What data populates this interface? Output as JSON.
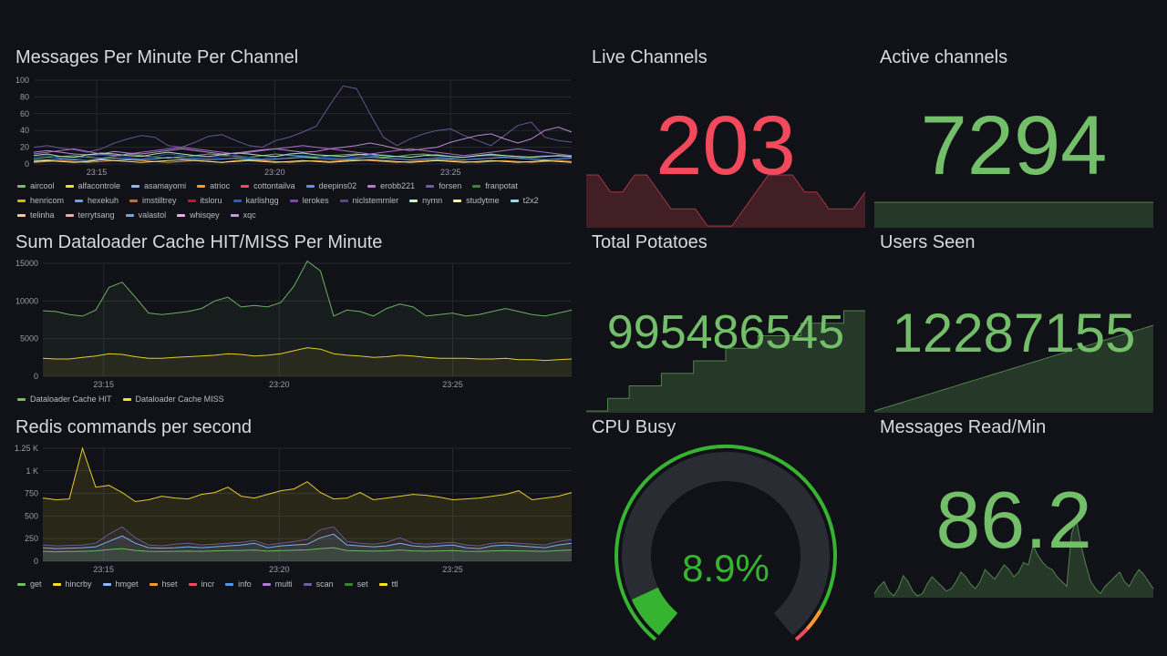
{
  "panels": {
    "messages": {
      "title": "Messages Per Minute Per Channel",
      "legend": [
        {
          "name": "aircool",
          "color": "#73bf69"
        },
        {
          "name": "alfacontrole",
          "color": "#fade2a"
        },
        {
          "name": "asamayomi",
          "color": "#8ab8ff"
        },
        {
          "name": "atrioc",
          "color": "#ff9830"
        },
        {
          "name": "cottontailva",
          "color": "#f2495c"
        },
        {
          "name": "deepins02",
          "color": "#5794f2"
        },
        {
          "name": "erobb221",
          "color": "#b877d9"
        },
        {
          "name": "forsen",
          "color": "#705da0"
        },
        {
          "name": "franpotat",
          "color": "#37872d"
        },
        {
          "name": "henricom",
          "color": "#e0b400"
        },
        {
          "name": "hexekuh",
          "color": "#6e9fff"
        },
        {
          "name": "imstilltrey",
          "color": "#c4702b"
        },
        {
          "name": "itsloru",
          "color": "#c4162a"
        },
        {
          "name": "karlishgg",
          "color": "#1f60c4"
        },
        {
          "name": "lerokes",
          "color": "#8f3bb8"
        },
        {
          "name": "niclstemmler",
          "color": "#56497d"
        },
        {
          "name": "nymn",
          "color": "#c8f2c2"
        },
        {
          "name": "studytme",
          "color": "#fff899"
        },
        {
          "name": "t2x2",
          "color": "#8ae0ff"
        },
        {
          "name": "telinha",
          "color": "#ffcb7d"
        },
        {
          "name": "terrytsang",
          "color": "#ffa6b0"
        },
        {
          "name": "valastol",
          "color": "#6fa8dc"
        },
        {
          "name": "whisqey",
          "color": "#f8a5e6"
        },
        {
          "name": "xqc",
          "color": "#ca95e5"
        }
      ]
    },
    "dataloader": {
      "title": "Sum Dataloader Cache HIT/MISS Per Minute",
      "legend": [
        {
          "name": "Dataloader Cache HIT",
          "color": "#73bf69"
        },
        {
          "name": "Dataloader Cache MISS",
          "color": "#fade2a"
        }
      ]
    },
    "redis": {
      "title": "Redis commands per second",
      "legend": [
        {
          "name": "get",
          "color": "#73bf69"
        },
        {
          "name": "hincrby",
          "color": "#fade2a"
        },
        {
          "name": "hmget",
          "color": "#8ab8ff"
        },
        {
          "name": "hset",
          "color": "#ff9830"
        },
        {
          "name": "incr",
          "color": "#f2495c"
        },
        {
          "name": "info",
          "color": "#5794f2"
        },
        {
          "name": "multi",
          "color": "#b877d9"
        },
        {
          "name": "scan",
          "color": "#705da0"
        },
        {
          "name": "set",
          "color": "#37872d"
        },
        {
          "name": "ttl",
          "color": "#fade2a"
        }
      ]
    },
    "live_channels": {
      "title": "Live Channels",
      "value": "203",
      "color": "#f2495c"
    },
    "active_channels": {
      "title": "Active channels",
      "value": "7294",
      "color": "#73bf69"
    },
    "total_potatoes": {
      "title": "Total Potatoes",
      "value": "995486545",
      "color": "#73bf69"
    },
    "users_seen": {
      "title": "Users Seen",
      "value": "12287155",
      "color": "#73bf69"
    },
    "cpu_busy": {
      "title": "CPU Busy",
      "value": "8.9%",
      "percent": 8.9,
      "color": "#37b332"
    },
    "messages_read": {
      "title": "Messages Read/Min",
      "value": "86.2",
      "color": "#73bf69"
    }
  },
  "chart_data": [
    {
      "type": "line",
      "title": "Messages Per Minute Per Channel",
      "x_ticks": [
        "23:15",
        "23:20",
        "23:25"
      ],
      "ylim": [
        0,
        100
      ],
      "y_ticks": [
        0,
        20,
        40,
        60,
        80,
        100
      ],
      "series": [
        {
          "name": "forsen",
          "color": "#705da0",
          "values": [
            20,
            22,
            19,
            17,
            14,
            18,
            25,
            30,
            34,
            32,
            22,
            20,
            26,
            33,
            35,
            28,
            22,
            20,
            28,
            32,
            38,
            45,
            70,
            93,
            90,
            60,
            32,
            22,
            30,
            36,
            40,
            42,
            34,
            28,
            22,
            34,
            46,
            50,
            32,
            28,
            26
          ]
        },
        {
          "name": "xqc",
          "color": "#ca95e5",
          "values": [
            14,
            16,
            14,
            12,
            11,
            12,
            15,
            13,
            12,
            14,
            16,
            18,
            16,
            14,
            12,
            13,
            15,
            17,
            18,
            16,
            14,
            15,
            18,
            20,
            22,
            25,
            22,
            18,
            16,
            18,
            20,
            26,
            30,
            34,
            36,
            30,
            25,
            30,
            40,
            44,
            38
          ]
        },
        {
          "name": "aircool",
          "color": "#73bf69",
          "values": [
            6,
            8,
            9,
            10,
            8,
            7,
            9,
            12,
            10,
            8,
            7,
            9,
            10,
            12,
            11,
            9,
            8,
            10,
            12,
            10,
            9,
            8,
            10,
            11,
            12,
            10,
            8,
            9,
            11,
            12,
            10,
            9,
            8,
            10,
            12,
            10,
            9,
            8,
            9,
            10,
            9
          ]
        },
        {
          "name": "karlishgg",
          "color": "#1f60c4",
          "values": [
            8,
            10,
            7,
            6,
            9,
            11,
            10,
            8,
            6,
            9,
            12,
            10,
            8,
            7,
            9,
            10,
            8,
            6,
            9,
            11,
            10,
            9,
            8,
            7,
            9,
            10,
            11,
            9,
            8,
            10,
            9,
            7,
            8,
            9,
            10,
            8,
            7,
            9,
            10,
            9,
            8
          ]
        },
        {
          "name": "asamayomi",
          "color": "#8ab8ff",
          "values": [
            4,
            5,
            6,
            5,
            4,
            6,
            7,
            6,
            5,
            6,
            8,
            7,
            6,
            5,
            6,
            7,
            6,
            5,
            6,
            7,
            8,
            7,
            6,
            5,
            7,
            8,
            7,
            6,
            5,
            6,
            7,
            6,
            5,
            6,
            7,
            8,
            7,
            6,
            5,
            6,
            7
          ]
        },
        {
          "name": "atrioc",
          "color": "#ff9830",
          "values": [
            2,
            3,
            4,
            3,
            2,
            3,
            4,
            5,
            4,
            3,
            2,
            3,
            4,
            3,
            2,
            4,
            5,
            4,
            3,
            2,
            3,
            4,
            3,
            4,
            5,
            4,
            3,
            2,
            3,
            4,
            5,
            4,
            3,
            2,
            3,
            4,
            3,
            2,
            3,
            4,
            3
          ]
        },
        {
          "name": "nymn",
          "color": "#c8f2c2",
          "values": [
            10,
            12,
            9,
            8,
            11,
            13,
            12,
            10,
            9,
            12,
            14,
            12,
            10,
            9,
            11,
            13,
            12,
            10,
            9,
            12,
            13,
            11,
            10,
            9,
            11,
            12,
            10,
            9,
            8,
            10,
            11,
            9,
            8,
            10,
            11,
            10,
            9,
            8,
            9,
            10,
            9
          ]
        },
        {
          "name": "studytme",
          "color": "#fff899",
          "values": [
            3,
            4,
            3,
            2,
            3,
            5,
            4,
            3,
            2,
            3,
            4,
            5,
            4,
            3,
            2,
            3,
            4,
            3,
            2,
            3,
            4,
            3,
            2,
            3,
            4,
            5,
            4,
            3,
            2,
            3,
            4,
            3,
            2,
            3,
            4,
            3,
            2,
            3,
            4,
            3,
            2
          ]
        },
        {
          "name": "erobb221",
          "color": "#b877d9",
          "values": [
            12,
            14,
            16,
            18,
            15,
            12,
            10,
            12,
            14,
            16,
            18,
            20,
            18,
            16,
            14,
            12,
            14,
            16,
            18,
            20,
            22,
            20,
            18,
            16,
            14,
            12,
            14,
            16,
            18,
            16,
            14,
            12,
            10,
            12,
            14,
            16,
            18,
            16,
            14,
            12,
            10
          ]
        }
      ]
    },
    {
      "type": "area",
      "title": "Sum Dataloader Cache HIT/MISS Per Minute",
      "x_ticks": [
        "23:15",
        "23:20",
        "23:25"
      ],
      "ylim": [
        0,
        15000
      ],
      "y_ticks": [
        0,
        5000,
        10000,
        15000
      ],
      "series": [
        {
          "name": "Dataloader Cache HIT",
          "color": "#73bf69",
          "values": [
            8700,
            8600,
            8200,
            8000,
            8800,
            11800,
            12500,
            10500,
            8400,
            8200,
            8400,
            8600,
            9000,
            10000,
            10500,
            9200,
            9400,
            9200,
            9800,
            12000,
            15300,
            14000,
            8000,
            8800,
            8600,
            8000,
            9000,
            9600,
            9200,
            8000,
            8200,
            8400,
            8000,
            8200,
            8600,
            9000,
            8600,
            8200,
            8000,
            8400,
            8800
          ]
        },
        {
          "name": "Dataloader Cache MISS",
          "color": "#fade2a",
          "values": [
            2400,
            2300,
            2300,
            2500,
            2700,
            3000,
            2900,
            2600,
            2400,
            2400,
            2500,
            2600,
            2700,
            2800,
            3000,
            2900,
            2700,
            2800,
            3000,
            3400,
            3800,
            3600,
            3000,
            2800,
            2700,
            2500,
            2600,
            2800,
            2700,
            2500,
            2400,
            2400,
            2400,
            2300,
            2300,
            2400,
            2200,
            2200,
            2100,
            2200,
            2300
          ]
        }
      ]
    },
    {
      "type": "area",
      "title": "Redis commands per second",
      "x_ticks": [
        "23:15",
        "23:20",
        "23:25"
      ],
      "ylim": [
        0,
        1250
      ],
      "y_ticks": [
        {
          "v": 0,
          "t": "0"
        },
        {
          "v": 250,
          "t": "250"
        },
        {
          "v": 500,
          "t": "500"
        },
        {
          "v": 750,
          "t": "750"
        },
        {
          "v": 1000,
          "t": "1 K"
        },
        {
          "v": 1250,
          "t": "1.25 K"
        }
      ],
      "series": [
        {
          "name": "hincrby",
          "color": "#fade2a",
          "values": [
            700,
            680,
            690,
            1250,
            820,
            840,
            760,
            660,
            680,
            720,
            700,
            690,
            740,
            760,
            820,
            720,
            700,
            740,
            780,
            800,
            880,
            760,
            690,
            700,
            760,
            680,
            700,
            720,
            740,
            730,
            710,
            680,
            690,
            700,
            720,
            740,
            780,
            680,
            700,
            720,
            760
          ]
        },
        {
          "name": "scan",
          "color": "#705da0",
          "values": [
            180,
            170,
            175,
            180,
            200,
            300,
            380,
            260,
            180,
            170,
            190,
            200,
            180,
            190,
            200,
            210,
            230,
            180,
            200,
            220,
            240,
            350,
            380,
            220,
            200,
            190,
            210,
            260,
            200,
            190,
            200,
            210,
            180,
            170,
            200,
            210,
            200,
            190,
            180,
            220,
            240
          ]
        },
        {
          "name": "hmget",
          "color": "#8ab8ff",
          "values": [
            150,
            140,
            145,
            150,
            160,
            220,
            280,
            200,
            150,
            145,
            150,
            160,
            150,
            160,
            170,
            180,
            200,
            150,
            170,
            180,
            190,
            260,
            300,
            180,
            170,
            160,
            170,
            200,
            170,
            160,
            170,
            180,
            150,
            140,
            170,
            180,
            170,
            160,
            150,
            180,
            200
          ]
        },
        {
          "name": "get",
          "color": "#73bf69",
          "values": [
            110,
            105,
            108,
            110,
            115,
            130,
            140,
            120,
            110,
            108,
            110,
            112,
            110,
            115,
            118,
            120,
            125,
            112,
            118,
            122,
            126,
            140,
            150,
            118,
            115,
            112,
            115,
            125,
            115,
            112,
            115,
            118,
            110,
            108,
            115,
            118,
            115,
            112,
            110,
            118,
            125
          ]
        }
      ]
    },
    {
      "type": "area",
      "title": "Live Channels",
      "color": "#f2495c",
      "values": [
        205,
        205,
        204,
        204,
        205,
        205,
        204,
        203,
        203,
        203,
        202,
        202,
        202,
        203,
        204,
        205,
        205,
        205,
        204,
        204,
        203,
        203,
        203,
        204
      ]
    },
    {
      "type": "area",
      "title": "Active channels",
      "color": "#73bf69",
      "values": [
        7294,
        7294,
        7294,
        7294,
        7294,
        7294,
        7294,
        7294,
        7294,
        7294
      ]
    },
    {
      "type": "area",
      "title": "Total Potatoes",
      "color": "#73bf69",
      "values": [
        0,
        0,
        1,
        1,
        2,
        2,
        2,
        3,
        3,
        3,
        4,
        4,
        4,
        5,
        5,
        5,
        6,
        6,
        6,
        6,
        7,
        7,
        7,
        7,
        8,
        8,
        8
      ]
    },
    {
      "type": "area",
      "title": "Users Seen",
      "color": "#73bf69",
      "values": [
        0,
        1,
        2,
        3,
        4,
        5,
        6,
        7,
        8,
        9,
        10,
        11,
        12,
        13,
        14,
        15,
        16,
        17,
        18,
        19,
        20,
        21,
        22,
        23,
        24,
        25,
        26,
        27,
        28,
        29,
        30,
        31,
        32,
        33,
        34,
        35,
        36,
        37,
        38,
        39,
        40,
        41,
        42,
        43,
        44,
        45,
        46,
        47,
        48,
        49,
        50
      ]
    },
    {
      "type": "area",
      "title": "Messages Read/Min",
      "color": "#73bf69",
      "values": [
        20,
        26,
        30,
        22,
        18,
        24,
        35,
        30,
        22,
        18,
        20,
        28,
        34,
        30,
        26,
        22,
        24,
        30,
        38,
        34,
        28,
        24,
        30,
        40,
        36,
        32,
        38,
        44,
        40,
        34,
        38,
        46,
        44,
        60,
        52,
        46,
        42,
        40,
        34,
        30,
        26,
        70,
        82,
        60,
        44,
        30,
        24,
        20,
        26,
        30,
        34,
        38,
        30,
        26,
        34,
        40,
        36,
        30,
        24
      ]
    }
  ]
}
